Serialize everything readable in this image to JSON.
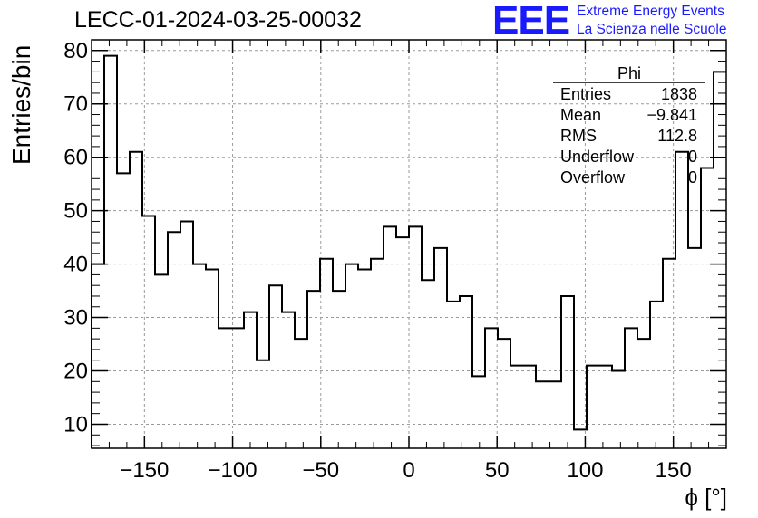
{
  "title": "LECC-01-2024-03-25-00032",
  "logo": {
    "mark": "EEE",
    "line1": "Extreme Energy Events",
    "line2": "La Scienza nelle Scuole"
  },
  "stats_box": {
    "header": "Phi",
    "rows": [
      {
        "label": "Entries",
        "value": "1838"
      },
      {
        "label": "Mean",
        "value": "−9.841"
      },
      {
        "label": "RMS",
        "value": "112.8"
      },
      {
        "label": "Underflow",
        "value": "0"
      },
      {
        "label": "Overflow",
        "value": "0"
      }
    ]
  },
  "colors": {
    "logo": "#1a1aff",
    "line": "#000000",
    "grid": "#9a9a9a"
  },
  "chart_data": {
    "type": "histogram",
    "xlabel": "ϕ [°]",
    "ylabel": "Entries/bin",
    "xlim": [
      -180,
      180
    ],
    "ylim": [
      5.5,
      82
    ],
    "grid": true,
    "bin_width": 7.2,
    "bin_edges_start": -180,
    "values": [
      40,
      79,
      57,
      61,
      49,
      38,
      46,
      48,
      40,
      39,
      28,
      28,
      31,
      22,
      36,
      31,
      26,
      35,
      41,
      35,
      40,
      39,
      41,
      47,
      45,
      47,
      37,
      43,
      33,
      34,
      19,
      28,
      26,
      21,
      21,
      18,
      18,
      34,
      9,
      21,
      21,
      20,
      28,
      26,
      33,
      41,
      61,
      43,
      58,
      76
    ],
    "x_ticks": [
      -150,
      -100,
      -50,
      0,
      50,
      100,
      150
    ],
    "x_tick_labels": [
      "−150",
      "−100",
      "−50",
      "0",
      "50",
      "100",
      "150"
    ],
    "y_ticks": [
      10,
      20,
      30,
      40,
      50,
      60,
      70,
      80
    ],
    "y_tick_labels": [
      "10",
      "20",
      "30",
      "40",
      "50",
      "60",
      "70",
      "80"
    ]
  }
}
